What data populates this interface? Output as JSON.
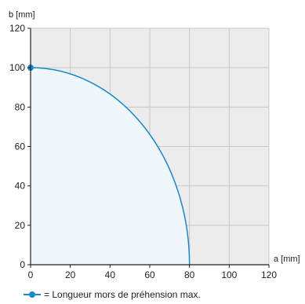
{
  "colors": {
    "background": "#ececec",
    "fill_region": "#eff6fc",
    "curve": "#1a88c9",
    "grid": "#c8c8c8",
    "axis": "#222222"
  },
  "chart_data": {
    "type": "line",
    "xlabel": "a [mm]",
    "ylabel": "b [mm]",
    "xlim": [
      0,
      120
    ],
    "ylim": [
      0,
      120
    ],
    "x_ticks": [
      0,
      20,
      40,
      60,
      80,
      100,
      120
    ],
    "y_ticks": [
      0,
      20,
      40,
      60,
      80,
      100,
      120
    ],
    "grid": true,
    "series": [
      {
        "x": [
          0,
          10,
          20,
          30,
          40,
          50,
          60,
          70,
          75,
          78,
          80
        ],
        "y": [
          100,
          99.2,
          96.8,
          92.7,
          86.6,
          78.1,
          66.1,
          48.4,
          34.8,
          22.2,
          0
        ],
        "color": "#1a88c9"
      }
    ],
    "markers": [
      {
        "x": 0,
        "y": 100
      }
    ],
    "legend": {
      "text": "= Longueur mors de préhension max."
    }
  }
}
